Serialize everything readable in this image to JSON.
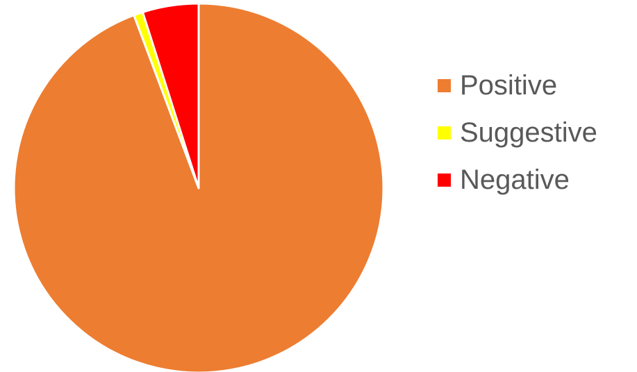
{
  "chart_data": {
    "type": "pie",
    "title": "",
    "categories": [
      "Positive",
      "Suggestive",
      "Negative"
    ],
    "values": [
      94.3,
      0.8,
      4.9
    ],
    "colors": [
      "#ED7D31",
      "#FFFF00",
      "#FF0000"
    ],
    "start_angle": "12 o'clock",
    "direction": "clockwise",
    "slice_border_color": "#FFFFFF",
    "legend_position": "right"
  }
}
